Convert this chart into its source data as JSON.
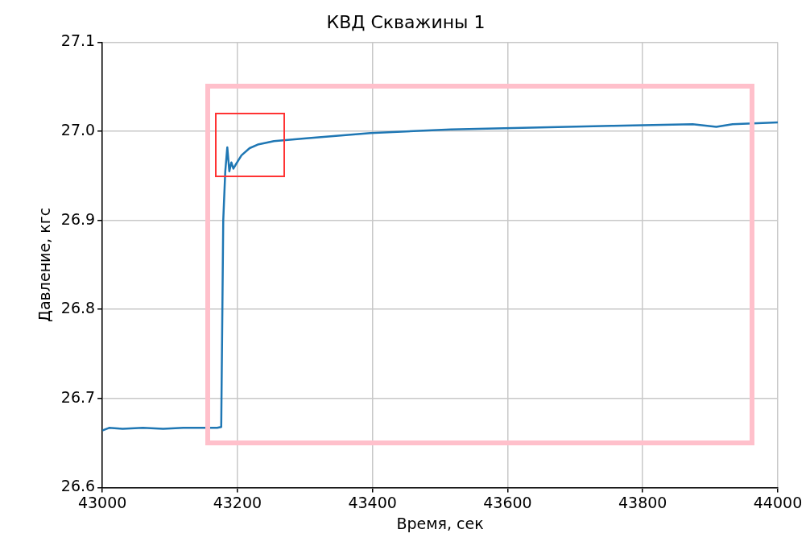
{
  "chart_data": {
    "type": "line",
    "title": "КВД Скважины 1",
    "xlabel": "Время, сек",
    "ylabel": "Давление, кгс",
    "series": [
      {
        "color": "#1f77b4",
        "x": [
          43000,
          43010,
          43030,
          43060,
          43090,
          43120,
          43150,
          43170,
          43176,
          43179,
          43182,
          43185,
          43188,
          43191,
          43194,
          43197,
          43206,
          43218,
          43230,
          43254,
          43302,
          43397,
          43516,
          43635,
          43754,
          43874,
          43909,
          43933,
          44000
        ],
        "values": [
          26.664,
          26.667,
          26.666,
          26.667,
          26.666,
          26.667,
          26.667,
          26.667,
          26.668,
          26.9,
          26.955,
          26.982,
          26.955,
          26.965,
          26.958,
          26.962,
          26.973,
          26.981,
          26.985,
          26.989,
          26.992,
          26.998,
          27.002,
          27.004,
          27.006,
          27.008,
          27.005,
          27.008,
          27.01
        ]
      }
    ],
    "xlim": [
      43000,
      44000
    ],
    "xticks": [
      43000,
      43200,
      43400,
      43600,
      43800,
      44000
    ],
    "ylim": [
      26.6,
      27.1
    ],
    "yticks": [
      {
        "value": 26.6,
        "label": "26.6"
      },
      {
        "value": 26.7,
        "label": "26.7"
      },
      {
        "value": 26.8,
        "label": "26.8"
      },
      {
        "value": 26.9,
        "label": "26.9"
      },
      {
        "value": 27.0,
        "label": "27.0"
      },
      {
        "value": 27.1,
        "label": "27.1"
      }
    ],
    "grid": true,
    "legend": false,
    "marker": "none",
    "line_style": "solid"
  }
}
